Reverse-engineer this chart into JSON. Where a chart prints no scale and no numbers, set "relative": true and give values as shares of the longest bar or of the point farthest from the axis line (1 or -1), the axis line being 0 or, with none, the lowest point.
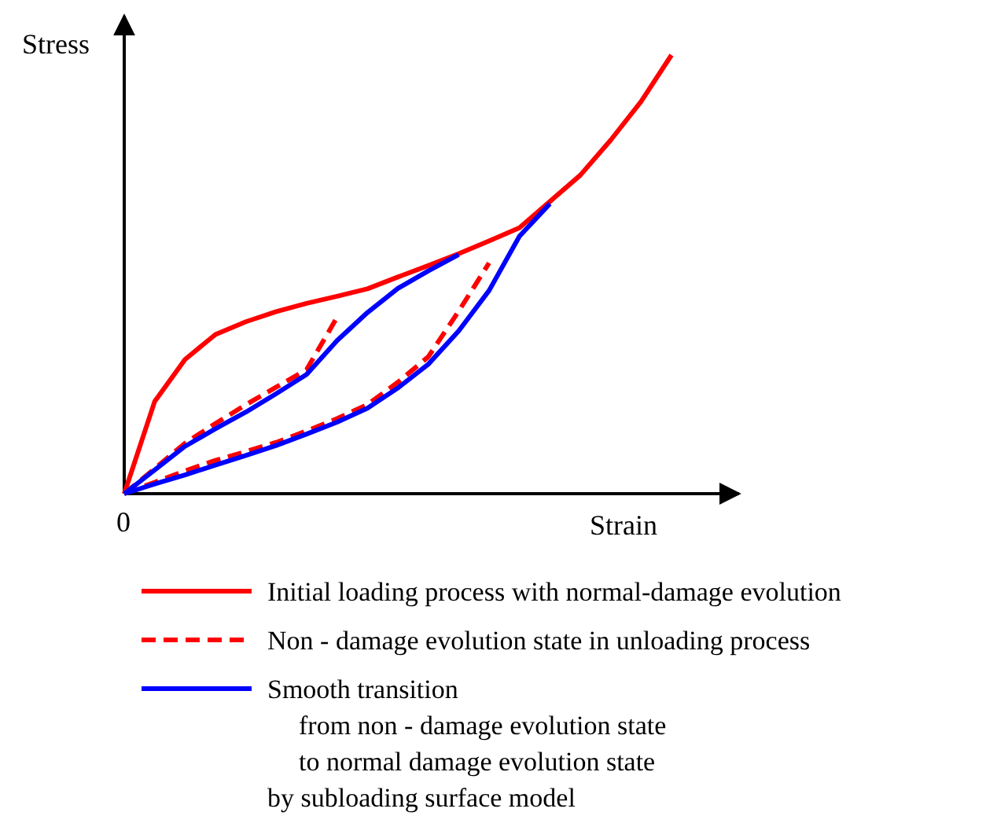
{
  "chart_data": {
    "type": "line",
    "relative": true,
    "xlabel": "Strain",
    "ylabel": "Stress",
    "annotations": [
      "0"
    ],
    "legend": "bottom",
    "categories": [
      null,
      null,
      null,
      null,
      null,
      null,
      null,
      null,
      null,
      null,
      null,
      null,
      null,
      null,
      null,
      null,
      null,
      null,
      null
    ],
    "series": [
      {
        "name": "Initial loading process with normal-damage evolution",
        "color": "#ff0000",
        "line_style": "solid",
        "values": [
          0,
          0.21,
          0.306,
          0.363,
          0.392,
          0.415,
          0.434,
          0.45,
          0.467,
          0.494,
          0.52,
          0.547,
          0.576,
          0.606,
          0.666,
          0.726,
          0.806,
          0.894,
          1.0
        ]
      },
      {
        "name": "Non - damage evolution state in unloading process",
        "color": "#ff0000",
        "line_style": "dashed",
        "values": [
          0,
          0.057,
          0.115,
          0.16,
          0.203,
          0.243,
          0.283,
          0.402,
          null,
          null,
          null,
          null,
          null,
          null,
          null,
          null,
          null,
          null,
          null
        ]
      },
      {
        "color": "#ff0000",
        "line_style": "dashed",
        "values": [
          0,
          0.026,
          0.052,
          0.076,
          0.096,
          0.117,
          0.143,
          0.171,
          0.203,
          0.254,
          0.312,
          0.416,
          0.526,
          null,
          null,
          null,
          null,
          null,
          null
        ]
      },
      {
        "name": "Smooth transition\nfrom non - damage evolution state\nto normal damage evolution state\nby subloading surface model",
        "color": "#0000ff",
        "line_style": "solid",
        "values": [
          0,
          0.054,
          0.108,
          0.148,
          0.186,
          0.228,
          0.272,
          0.349,
          0.413,
          0.468,
          0.508,
          0.545,
          null,
          null,
          null,
          null,
          null,
          null,
          null
        ]
      },
      {
        "color": "#0000ff",
        "line_style": "solid",
        "values": [
          0,
          0.022,
          0.043,
          0.065,
          0.087,
          0.11,
          0.136,
          0.163,
          0.195,
          0.241,
          0.295,
          0.371,
          0.463,
          0.587,
          0.661,
          null,
          null,
          null,
          null
        ]
      }
    ]
  }
}
